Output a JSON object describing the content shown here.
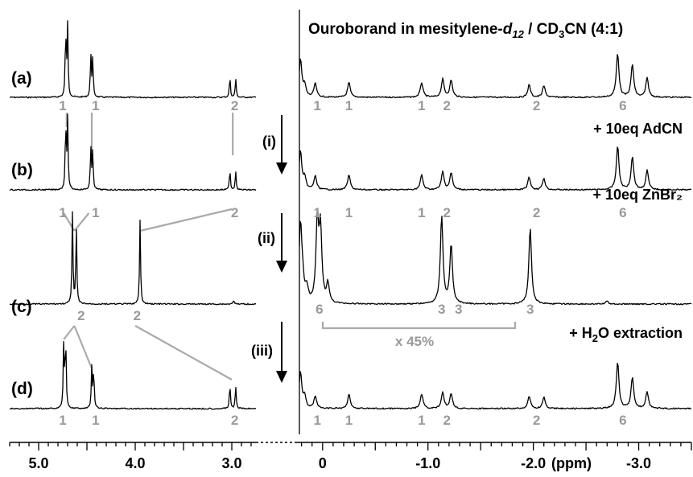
{
  "chart_data": {
    "type": "line",
    "title_parts": {
      "pre": "Ouroborand in mesitylene-",
      "italic": "d",
      "italic_sub": "12",
      "mid": " / CD",
      "sub": "3",
      "post": "CN (4:1)"
    },
    "xlabel": "(ppm)",
    "x_reversed": true,
    "axis_break": true,
    "left_panel": {
      "xlim": [
        5.3,
        2.75
      ],
      "ticks": [
        {
          "v": 5.0,
          "label": "5.0"
        },
        {
          "v": 4.0,
          "label": "4.0"
        },
        {
          "v": 3.0,
          "label": "3.0"
        }
      ]
    },
    "right_panel": {
      "xlim": [
        0.22,
        -3.5
      ],
      "ticks": [
        {
          "v": 0.0,
          "label": "0"
        },
        {
          "v": -1.0,
          "label": "-1.0"
        },
        {
          "v": -2.0,
          "label": "-2.0"
        },
        {
          "v": -3.0,
          "label": "-3.0"
        }
      ]
    },
    "spectra": [
      {
        "name": "(a)",
        "left_peaks": [
          {
            "ppm": 4.72,
            "h": 0.93
          },
          {
            "ppm": 4.7,
            "h": 1.0
          },
          {
            "ppm": 4.46,
            "h": 0.6
          },
          {
            "ppm": 4.44,
            "h": 0.55
          },
          {
            "ppm": 3.02,
            "h": 0.3
          },
          {
            "ppm": 2.96,
            "h": 0.27
          }
        ],
        "right_peaks": [
          {
            "ppm": 0.21,
            "h": 0.7
          },
          {
            "ppm": 0.17,
            "h": 0.2
          },
          {
            "ppm": 0.07,
            "h": 0.25
          },
          {
            "ppm": -0.25,
            "h": 0.27
          },
          {
            "ppm": -0.94,
            "h": 0.27
          },
          {
            "ppm": -1.14,
            "h": 0.33
          },
          {
            "ppm": -1.22,
            "h": 0.31
          },
          {
            "ppm": -1.96,
            "h": 0.23
          },
          {
            "ppm": -2.1,
            "h": 0.21
          },
          {
            "ppm": -2.8,
            "h": 0.8
          },
          {
            "ppm": -2.94,
            "h": 0.6
          },
          {
            "ppm": -3.08,
            "h": 0.35
          }
        ],
        "left_labels": [
          {
            "ppm": 4.75,
            "text": "1"
          },
          {
            "ppm": 4.41,
            "text": "1"
          },
          {
            "ppm": 2.97,
            "text": "2"
          }
        ],
        "right_labels": [
          {
            "ppm": 0.05,
            "text": "1"
          },
          {
            "ppm": -0.25,
            "text": "1"
          },
          {
            "ppm": -0.94,
            "text": "1"
          },
          {
            "ppm": -1.18,
            "text": "2"
          },
          {
            "ppm": -2.03,
            "text": "2"
          },
          {
            "ppm": -2.85,
            "text": "6"
          }
        ],
        "annotation": ""
      },
      {
        "name": "(b)",
        "left_peaks": [
          {
            "ppm": 4.72,
            "h": 0.93
          },
          {
            "ppm": 4.7,
            "h": 1.0
          },
          {
            "ppm": 4.46,
            "h": 0.6
          },
          {
            "ppm": 4.44,
            "h": 0.55
          },
          {
            "ppm": 3.02,
            "h": 0.3
          },
          {
            "ppm": 2.96,
            "h": 0.27
          }
        ],
        "right_peaks": [
          {
            "ppm": 0.21,
            "h": 0.7
          },
          {
            "ppm": 0.17,
            "h": 0.2
          },
          {
            "ppm": 0.07,
            "h": 0.25
          },
          {
            "ppm": -0.25,
            "h": 0.27
          },
          {
            "ppm": -0.94,
            "h": 0.27
          },
          {
            "ppm": -1.14,
            "h": 0.33
          },
          {
            "ppm": -1.22,
            "h": 0.31
          },
          {
            "ppm": -1.96,
            "h": 0.23
          },
          {
            "ppm": -2.1,
            "h": 0.21
          },
          {
            "ppm": -2.8,
            "h": 0.8
          },
          {
            "ppm": -2.94,
            "h": 0.6
          },
          {
            "ppm": -3.08,
            "h": 0.35
          }
        ],
        "left_labels": [
          {
            "ppm": 4.75,
            "text": "1"
          },
          {
            "ppm": 4.41,
            "text": "1"
          },
          {
            "ppm": 2.97,
            "text": "2"
          }
        ],
        "right_labels": [
          {
            "ppm": 0.05,
            "text": "1"
          },
          {
            "ppm": -0.25,
            "text": "1"
          },
          {
            "ppm": -0.94,
            "text": "1"
          },
          {
            "ppm": -1.18,
            "text": "2"
          },
          {
            "ppm": -2.03,
            "text": "2"
          },
          {
            "ppm": -2.85,
            "text": "6"
          }
        ],
        "annotation": "+ 10eq AdCN"
      },
      {
        "name": "(c)",
        "left_peaks": [
          {
            "ppm": 4.65,
            "h": 0.95
          },
          {
            "ppm": 4.61,
            "h": 0.82
          },
          {
            "ppm": 3.95,
            "h": 0.88
          },
          {
            "ppm": 2.98,
            "h": 0.05
          }
        ],
        "right_peaks": [
          {
            "ppm": 0.21,
            "h": 0.8
          },
          {
            "ppm": 0.19,
            "h": 0.2
          },
          {
            "ppm": 0.15,
            "h": 0.15
          },
          {
            "ppm": 0.05,
            "h": 0.85
          },
          {
            "ppm": 0.02,
            "h": 0.75
          },
          {
            "ppm": -0.05,
            "h": 0.2
          },
          {
            "ppm": -1.13,
            "h": 0.92
          },
          {
            "ppm": -1.22,
            "h": 0.62
          },
          {
            "ppm": -1.97,
            "h": 0.8
          },
          {
            "ppm": -2.7,
            "h": 0.03
          }
        ],
        "left_labels": [
          {
            "ppm": 4.56,
            "text": "2"
          },
          {
            "ppm": 3.98,
            "text": "2"
          }
        ],
        "right_labels": [
          {
            "ppm": 0.03,
            "text": "6"
          },
          {
            "ppm": -1.13,
            "text": "3"
          },
          {
            "ppm": -1.29,
            "text": "3"
          },
          {
            "ppm": -1.97,
            "text": "3"
          }
        ],
        "annotation": "+ 10eq ZnBr₂",
        "scale_label": "x 45%"
      },
      {
        "name": "(d)",
        "left_peaks": [
          {
            "ppm": 4.74,
            "h": 0.95
          },
          {
            "ppm": 4.72,
            "h": 1.0
          },
          {
            "ppm": 4.45,
            "h": 0.58
          },
          {
            "ppm": 4.43,
            "h": 0.55
          },
          {
            "ppm": 3.02,
            "h": 0.36
          },
          {
            "ppm": 2.96,
            "h": 0.32
          }
        ],
        "right_peaks": [
          {
            "ppm": 0.21,
            "h": 0.65
          },
          {
            "ppm": 0.17,
            "h": 0.2
          },
          {
            "ppm": 0.07,
            "h": 0.22
          },
          {
            "ppm": -0.25,
            "h": 0.25
          },
          {
            "ppm": -0.94,
            "h": 0.26
          },
          {
            "ppm": -1.14,
            "h": 0.28
          },
          {
            "ppm": -1.22,
            "h": 0.27
          },
          {
            "ppm": -1.96,
            "h": 0.22
          },
          {
            "ppm": -2.1,
            "h": 0.2
          },
          {
            "ppm": -2.8,
            "h": 0.82
          },
          {
            "ppm": -2.94,
            "h": 0.56
          },
          {
            "ppm": -3.08,
            "h": 0.3
          }
        ],
        "left_labels": [
          {
            "ppm": 4.75,
            "text": "1"
          },
          {
            "ppm": 4.41,
            "text": "1"
          },
          {
            "ppm": 2.97,
            "text": "2"
          }
        ],
        "right_labels": [
          {
            "ppm": 0.05,
            "text": "1"
          },
          {
            "ppm": -0.25,
            "text": "1"
          },
          {
            "ppm": -0.94,
            "text": "1"
          },
          {
            "ppm": -1.18,
            "text": "2"
          },
          {
            "ppm": -2.03,
            "text": "2"
          },
          {
            "ppm": -2.85,
            "text": "6"
          }
        ],
        "annotation": ""
      }
    ],
    "steps": [
      {
        "label": "(i)"
      },
      {
        "label": "(ii)"
      },
      {
        "label": "(iii)"
      }
    ],
    "final_annotation": {
      "pre": "+ H",
      "sub": "2",
      "post": "O extraction"
    },
    "colors": {
      "trace": "#000000",
      "assignment": "#9a9a9a",
      "correlation": "#aaaaaa"
    }
  }
}
